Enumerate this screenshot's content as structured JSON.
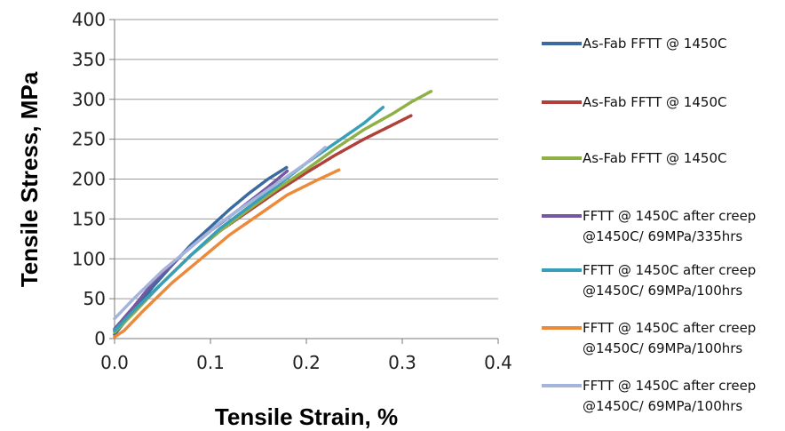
{
  "chart_data": {
    "type": "line",
    "xlabel": "Tensile Strain, %",
    "ylabel": "Tensile Stress, MPa",
    "xlim": [
      0,
      0.4
    ],
    "ylim": [
      0,
      400
    ],
    "xticks": [
      "0.0",
      "0.1",
      "0.2",
      "0.3",
      "0.4"
    ],
    "yticks": [
      "0",
      "50",
      "100",
      "150",
      "200",
      "250",
      "300",
      "350",
      "400"
    ],
    "grid": "horizontal",
    "legend_position": "right",
    "series": [
      {
        "name": "As-Fab FFTT @ 1450C",
        "color": "#3b6aa0",
        "x": [
          0,
          0.02,
          0.04,
          0.06,
          0.08,
          0.1,
          0.12,
          0.14,
          0.16,
          0.18
        ],
        "y": [
          5,
          35,
          65,
          92,
          118,
          140,
          162,
          182,
          200,
          215
        ]
      },
      {
        "name": "As-Fab FFTT @ 1450C",
        "color": "#b0403c",
        "x": [
          0,
          0.02,
          0.05,
          0.08,
          0.11,
          0.14,
          0.17,
          0.2,
          0.23,
          0.26,
          0.29,
          0.31
        ],
        "y": [
          10,
          35,
          70,
          105,
          135,
          160,
          185,
          208,
          230,
          250,
          268,
          280
        ]
      },
      {
        "name": "As-Fab FFTT @ 1450C",
        "color": "#8fb046",
        "x": [
          0,
          0.02,
          0.05,
          0.08,
          0.11,
          0.14,
          0.17,
          0.2,
          0.23,
          0.26,
          0.29,
          0.31,
          0.33
        ],
        "y": [
          8,
          32,
          70,
          105,
          135,
          162,
          188,
          212,
          238,
          262,
          282,
          297,
          310
        ]
      },
      {
        "name": "FFTT @ 1450C after creep @1450C/ 69MPa/335hrs",
        "color": "#7658a0",
        "x": [
          0,
          0.02,
          0.04,
          0.07,
          0.1,
          0.13,
          0.16,
          0.18
        ],
        "y": [
          12,
          40,
          70,
          105,
          135,
          162,
          190,
          210
        ]
      },
      {
        "name": "FFTT @ 1450C after creep @1450C/ 69MPa/100hrs",
        "color": "#37a0b8",
        "x": [
          0,
          0.02,
          0.05,
          0.08,
          0.11,
          0.14,
          0.17,
          0.2,
          0.23,
          0.26,
          0.28
        ],
        "y": [
          10,
          35,
          70,
          105,
          138,
          165,
          192,
          220,
          245,
          270,
          290
        ]
      },
      {
        "name": "FFTT @ 1450C after creep @1450C/ 69MPa/100hrs",
        "color": "#ec8a3c",
        "x": [
          0,
          0.01,
          0.03,
          0.06,
          0.09,
          0.12,
          0.15,
          0.18,
          0.21,
          0.235
        ],
        "y": [
          2,
          10,
          35,
          70,
          100,
          130,
          155,
          180,
          198,
          212
        ]
      },
      {
        "name": "FFTT @ 1450C after creep @1450C/ 69MPa/100hrs",
        "color": "#a5b4dc",
        "x": [
          0,
          0.02,
          0.05,
          0.08,
          0.11,
          0.14,
          0.17,
          0.2,
          0.22
        ],
        "y": [
          25,
          50,
          85,
          115,
          145,
          170,
          195,
          220,
          240
        ]
      }
    ]
  },
  "legend": [
    {
      "lines": [
        "As-Fab FFTT @ 1450C"
      ],
      "color": "#3b6aa0"
    },
    {
      "lines": [
        "As-Fab FFTT @ 1450C"
      ],
      "color": "#b0403c"
    },
    {
      "lines": [
        "As-Fab FFTT @ 1450C"
      ],
      "color": "#8fb046"
    },
    {
      "lines": [
        "FFTT @ 1450C after creep",
        "@1450C/ 69MPa/335hrs"
      ],
      "color": "#7658a0"
    },
    {
      "lines": [
        "FFTT @ 1450C after creep",
        "@1450C/ 69MPa/100hrs"
      ],
      "color": "#37a0b8"
    },
    {
      "lines": [
        "FFTT @ 1450C after creep",
        "@1450C/ 69MPa/100hrs"
      ],
      "color": "#ec8a3c"
    },
    {
      "lines": [
        "FFTT @ 1450C after creep",
        "@1450C/ 69MPa/100hrs"
      ],
      "color": "#a5b4dc"
    }
  ]
}
